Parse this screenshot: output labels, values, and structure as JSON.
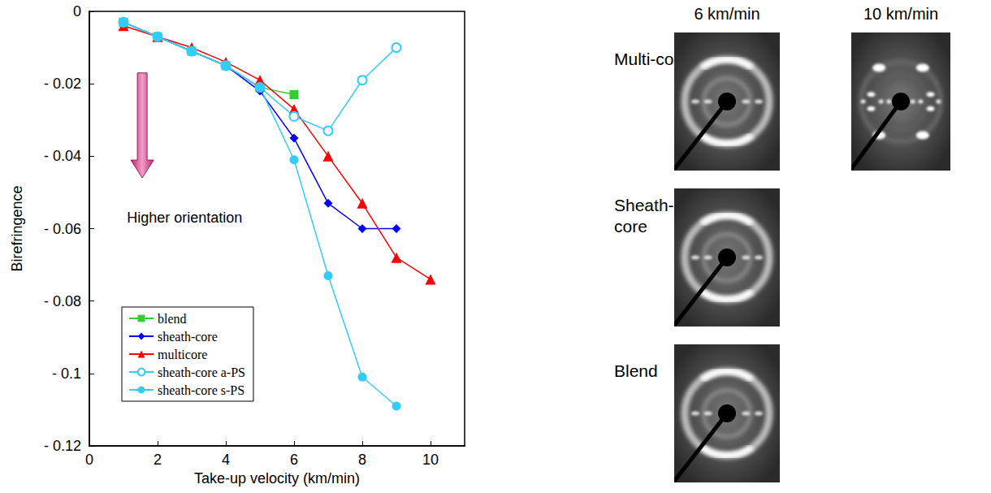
{
  "chart_data": {
    "type": "line",
    "x_label": "Take-up velocity (km/min)",
    "y_label": "Birefringence",
    "xlim": [
      0,
      11
    ],
    "xticks": [
      0,
      2,
      4,
      6,
      8,
      10
    ],
    "ylim": [
      -0.12,
      0
    ],
    "yticks": [
      {
        "value": -0.12,
        "label": "- 0.12"
      },
      {
        "value": -0.1,
        "label": "- 0.1"
      },
      {
        "value": -0.08,
        "label": "- 0.08"
      },
      {
        "value": -0.06,
        "label": "- 0.06"
      },
      {
        "value": -0.04,
        "label": "- 0.04"
      },
      {
        "value": -0.02,
        "label": "- 0.02"
      },
      0
    ],
    "grid": false,
    "legend": "lower left",
    "annotations": [
      {
        "text": "Higher orientation"
      }
    ],
    "series": [
      {
        "name": "blend",
        "color": "#33cc33",
        "marker": "square",
        "x": [
          1,
          2,
          3,
          4,
          5,
          6
        ],
        "values": [
          -0.003,
          -0.007,
          -0.011,
          -0.015,
          -0.021,
          -0.023
        ]
      },
      {
        "name": "sheath-core",
        "color": "#0000ff",
        "marker": "diamond",
        "x": [
          1,
          2,
          3,
          4,
          5,
          6,
          7,
          8,
          9
        ],
        "values": [
          -0.003,
          -0.007,
          -0.011,
          -0.015,
          -0.022,
          -0.035,
          -0.053,
          -0.06,
          -0.06
        ]
      },
      {
        "name": "multicore",
        "color": "#ff0000",
        "marker": "triangle",
        "x": [
          1,
          2,
          3,
          4,
          5,
          6,
          7,
          8,
          9,
          10
        ],
        "values": [
          -0.004,
          -0.007,
          -0.01,
          -0.014,
          -0.019,
          -0.027,
          -0.04,
          -0.053,
          -0.068,
          -0.074
        ]
      },
      {
        "name": "sheath-core a-PS",
        "color": "#33ccff",
        "marker": "open_circle",
        "x": [
          1,
          2,
          3,
          4,
          5,
          6,
          7,
          8,
          9
        ],
        "values": [
          -0.003,
          -0.007,
          -0.011,
          -0.015,
          -0.021,
          -0.029,
          -0.033,
          -0.019,
          -0.01
        ]
      },
      {
        "name": "sheath-core s-PS",
        "color": "#33ccff",
        "marker": "circle",
        "x": [
          1,
          2,
          3,
          4,
          5,
          6,
          7,
          8,
          9
        ],
        "values": [
          -0.003,
          -0.007,
          -0.011,
          -0.015,
          -0.021,
          -0.041,
          -0.073,
          -0.101,
          -0.109
        ]
      }
    ]
  },
  "xray_images": {
    "column_titles": [
      "6 km/min",
      "10 km/min"
    ],
    "rows": [
      {
        "label": "Multi-core",
        "shown_at": [
          "6 km/min",
          "10 km/min"
        ]
      },
      {
        "label": "Sheath-core",
        "shown_at": [
          "6 km/min"
        ]
      },
      {
        "label": "Blend",
        "shown_at": [
          "6 km/min"
        ]
      }
    ]
  }
}
